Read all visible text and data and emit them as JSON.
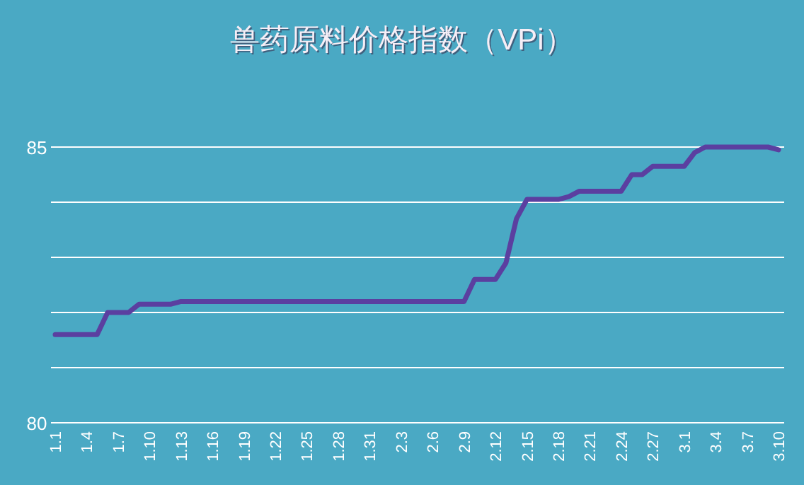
{
  "chart_data": {
    "type": "line",
    "title": "兽药原料价格指数（VPi）",
    "categories": [
      "1.1",
      null,
      null,
      "1.4",
      null,
      null,
      "1.7",
      null,
      null,
      "1.10",
      null,
      null,
      "1.13",
      null,
      null,
      "1.16",
      null,
      null,
      "1.19",
      null,
      null,
      "1.22",
      null,
      null,
      "1.25",
      null,
      null,
      "1.28",
      null,
      null,
      "1.31",
      null,
      null,
      "2.3",
      null,
      null,
      "2.6",
      null,
      null,
      "2.9",
      null,
      null,
      "2.12",
      null,
      null,
      "2.15",
      null,
      null,
      "2.18",
      null,
      null,
      "2.21",
      null,
      null,
      "2.24",
      null,
      null,
      "2.27",
      null,
      null,
      "3.1",
      null,
      null,
      "3.4",
      null,
      null,
      "3.7",
      null,
      null,
      "3.10"
    ],
    "series": [
      {
        "color": "#5b3fa0",
        "values": [
          81.6,
          81.6,
          81.6,
          81.6,
          81.6,
          82.0,
          82.0,
          82.0,
          82.15,
          82.15,
          82.15,
          82.15,
          82.2,
          82.2,
          82.2,
          82.2,
          82.2,
          82.2,
          82.2,
          82.2,
          82.2,
          82.2,
          82.2,
          82.2,
          82.2,
          82.2,
          82.2,
          82.2,
          82.2,
          82.2,
          82.2,
          82.2,
          82.2,
          82.2,
          82.2,
          82.2,
          82.2,
          82.2,
          82.2,
          82.2,
          82.6,
          82.6,
          82.6,
          82.9,
          83.7,
          84.05,
          84.05,
          84.05,
          84.05,
          84.1,
          84.2,
          84.2,
          84.2,
          84.2,
          84.2,
          84.5,
          84.5,
          84.65,
          84.65,
          84.65,
          84.65,
          84.9,
          85.0,
          85.0,
          85.0,
          85.0,
          85.0,
          85.0,
          85.0,
          84.95
        ]
      }
    ],
    "ylim": [
      80,
      85
    ],
    "yticks": [
      80,
      {
        "value": 81,
        "label": null
      },
      {
        "value": 82,
        "label": null
      },
      {
        "value": 83,
        "label": null
      },
      {
        "value": 84,
        "label": null
      },
      85
    ],
    "grid": "y"
  }
}
